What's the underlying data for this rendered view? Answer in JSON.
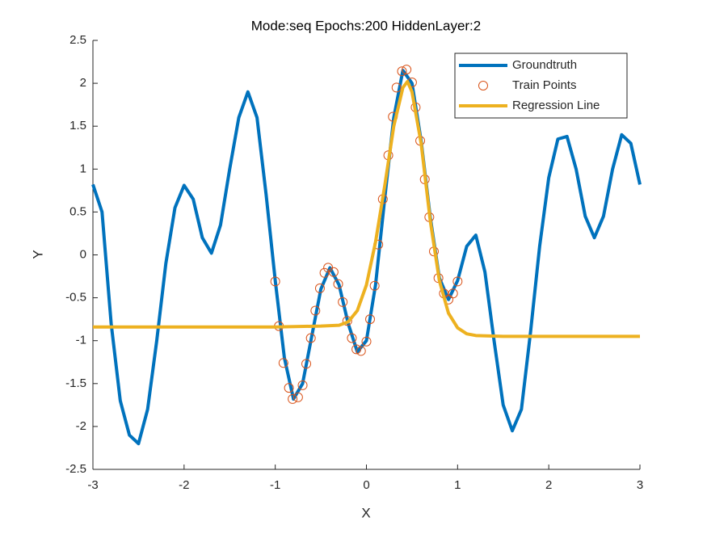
{
  "chart_data": {
    "type": "line",
    "title": "Mode:seq Epochs:200 HiddenLayer:2",
    "x_label": "X",
    "y_label": "Y",
    "xlim": [
      -3,
      3
    ],
    "ylim": [
      -2.5,
      2.5
    ],
    "xticks": [
      -3,
      -2,
      -1,
      0,
      1,
      2,
      3
    ],
    "yticks": [
      -2.5,
      -2,
      -1.5,
      -1,
      -0.5,
      0,
      0.5,
      1,
      1.5,
      2,
      2.5
    ],
    "legend": "northeast",
    "series": [
      {
        "name": "Groundtruth",
        "style": "line",
        "color": "#0072BD",
        "x": [
          -3.0,
          -2.9,
          -2.8,
          -2.7,
          -2.6,
          -2.5,
          -2.4,
          -2.3,
          -2.2,
          -2.1,
          -2.0,
          -1.9,
          -1.8,
          -1.7,
          -1.6,
          -1.5,
          -1.4,
          -1.3,
          -1.2,
          -1.1,
          -1.0,
          -0.9,
          -0.8,
          -0.7,
          -0.6,
          -0.5,
          -0.4,
          -0.3,
          -0.2,
          -0.1,
          0.0,
          0.1,
          0.2,
          0.3,
          0.4,
          0.5,
          0.6,
          0.7,
          0.8,
          0.9,
          1.0,
          1.1,
          1.2,
          1.3,
          1.4,
          1.5,
          1.6,
          1.7,
          1.8,
          1.9,
          2.0,
          2.1,
          2.2,
          2.3,
          2.4,
          2.5,
          2.6,
          2.7,
          2.8,
          2.9,
          3.0
        ],
        "values": [
          0.82,
          0.5,
          -0.8,
          -1.7,
          -2.1,
          -2.2,
          -1.8,
          -1.0,
          -0.1,
          0.55,
          0.81,
          0.65,
          0.2,
          0.02,
          0.35,
          1.0,
          1.6,
          1.9,
          1.6,
          0.7,
          -0.3,
          -1.2,
          -1.68,
          -1.5,
          -0.95,
          -0.4,
          -0.15,
          -0.35,
          -0.8,
          -1.13,
          -1.0,
          -0.35,
          0.65,
          1.6,
          2.15,
          2.0,
          1.33,
          0.44,
          -0.27,
          -0.52,
          -0.3,
          0.1,
          0.23,
          -0.2,
          -1.0,
          -1.75,
          -2.05,
          -1.8,
          -0.9,
          0.1,
          0.9,
          1.35,
          1.38,
          1.0,
          0.45,
          0.2,
          0.45,
          1.0,
          1.4,
          1.3,
          0.82
        ]
      },
      {
        "name": "Train Points",
        "style": "markers",
        "color": "#D95319",
        "x": [
          -1.0,
          -0.96,
          -0.91,
          -0.85,
          -0.81,
          -0.75,
          -0.7,
          -0.66,
          -0.61,
          -0.56,
          -0.51,
          -0.46,
          -0.42,
          -0.36,
          -0.31,
          -0.26,
          -0.21,
          -0.16,
          -0.11,
          -0.06,
          0.0,
          0.04,
          0.09,
          0.13,
          0.18,
          0.24,
          0.29,
          0.33,
          0.39,
          0.44,
          0.5,
          0.54,
          0.59,
          0.64,
          0.69,
          0.74,
          0.79,
          0.85,
          0.9,
          0.95,
          1.0
        ],
        "values": [
          -0.31,
          -0.83,
          -1.26,
          -1.55,
          -1.68,
          -1.66,
          -1.52,
          -1.27,
          -0.97,
          -0.65,
          -0.39,
          -0.21,
          -0.15,
          -0.2,
          -0.34,
          -0.55,
          -0.77,
          -0.97,
          -1.1,
          -1.12,
          -1.01,
          -0.75,
          -0.36,
          0.12,
          0.65,
          1.16,
          1.61,
          1.95,
          2.14,
          2.16,
          2.01,
          1.72,
          1.33,
          0.88,
          0.44,
          0.04,
          -0.27,
          -0.45,
          -0.52,
          -0.45,
          -0.31
        ]
      },
      {
        "name": "Regression Line",
        "style": "line",
        "color": "#EDB120",
        "x": [
          -3.0,
          -1.0,
          -0.5,
          -0.3,
          -0.2,
          -0.1,
          0.0,
          0.1,
          0.2,
          0.3,
          0.4,
          0.45,
          0.5,
          0.6,
          0.7,
          0.8,
          0.9,
          1.0,
          1.1,
          1.2,
          1.5,
          3.0
        ],
        "values": [
          -0.84,
          -0.84,
          -0.83,
          -0.82,
          -0.78,
          -0.65,
          -0.35,
          0.15,
          0.8,
          1.5,
          1.95,
          2.02,
          1.9,
          1.3,
          0.4,
          -0.3,
          -0.68,
          -0.85,
          -0.92,
          -0.94,
          -0.95,
          -0.95
        ]
      }
    ]
  }
}
